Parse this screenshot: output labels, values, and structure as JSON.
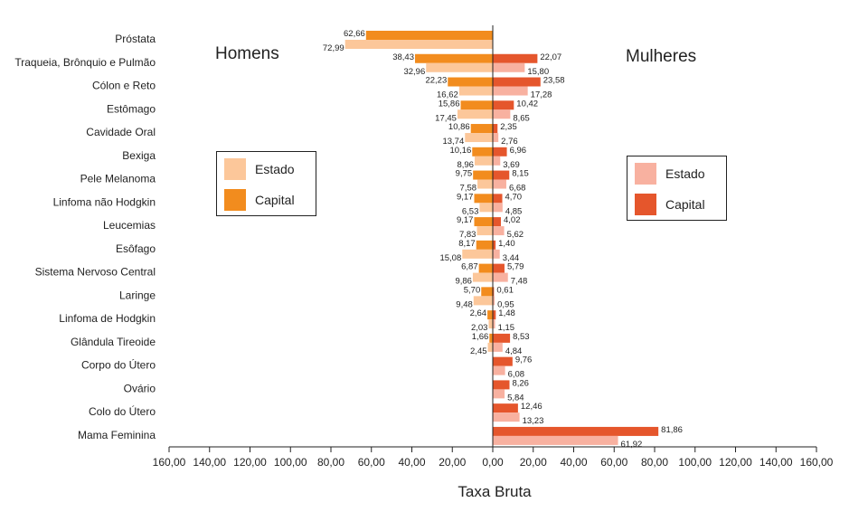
{
  "colors": {
    "men_capital": "#F28C1E",
    "men_estado": "#FCC79A",
    "women_capital": "#E5562C",
    "women_estado": "#F8B1A0",
    "axis": "#222222"
  },
  "labels": {
    "homens": "Homens",
    "mulheres": "Mulheres",
    "xlabel": "Taxa Bruta"
  },
  "legend_men": [
    {
      "label": "Estado",
      "color": "#FCC79A"
    },
    {
      "label": "Capital",
      "color": "#F28C1E"
    }
  ],
  "legend_women": [
    {
      "label": "Estado",
      "color": "#F8B1A0"
    },
    {
      "label": "Capital",
      "color": "#E5562C"
    }
  ],
  "chart_data": {
    "type": "bar",
    "orientation": "horizontal-butterfly",
    "xlabel": "Taxa Bruta",
    "xlim": [
      -160,
      160
    ],
    "xticks": [
      -160,
      -140,
      -120,
      -100,
      -80,
      -60,
      -40,
      -20,
      0,
      20,
      40,
      60,
      80,
      100,
      120,
      140,
      160
    ],
    "xtick_labels": [
      "160,00",
      "140,00",
      "120,00",
      "100,00",
      "80,00",
      "60,00",
      "40,00",
      "20,00",
      "0,00",
      "20,00",
      "40,00",
      "60,00",
      "80,00",
      "100,00",
      "120,00",
      "140,00",
      "160,00"
    ],
    "categories": [
      "Próstata",
      "Traqueia, Brônquio e Pulmão",
      "Cólon e Reto",
      "Estômago",
      "Cavidade Oral",
      "Bexiga",
      "Pele Melanoma",
      "Linfoma não Hodgkin",
      "Leucemias",
      "Esôfago",
      "Sistema Nervoso Central",
      "Laringe",
      "Linfoma de Hodgkin",
      "Glândula Tireoide",
      "Corpo do Útero",
      "Ovário",
      "Colo do Útero",
      "Mama Feminina"
    ],
    "series": [
      {
        "name": "Homens Capital",
        "side": "left",
        "values": [
          62.66,
          38.43,
          22.23,
          15.86,
          10.86,
          10.16,
          9.75,
          9.17,
          9.17,
          8.17,
          6.87,
          5.7,
          2.64,
          1.66,
          null,
          null,
          null,
          null
        ],
        "labels": [
          "62,66",
          "38,43",
          "22,23",
          "15,86",
          "10,86",
          "10,16",
          "9,75",
          "9,17",
          "9,17",
          "8,17",
          "6,87",
          "5,70",
          "2,64",
          "1,66",
          "",
          "",
          "",
          ""
        ]
      },
      {
        "name": "Homens Estado",
        "side": "left",
        "values": [
          72.99,
          32.96,
          16.62,
          17.45,
          13.74,
          8.96,
          7.58,
          6.53,
          7.83,
          15.08,
          9.86,
          9.48,
          2.03,
          2.45,
          null,
          null,
          null,
          null
        ],
        "labels": [
          "72,99",
          "32,96",
          "16,62",
          "17,45",
          "13,74",
          "8,96",
          "7,58",
          "6,53",
          "7,83",
          "15,08",
          "9,86",
          "9,48",
          "2,03",
          "2,45",
          "",
          "",
          "",
          ""
        ]
      },
      {
        "name": "Mulheres Capital",
        "side": "right",
        "values": [
          null,
          22.07,
          23.58,
          10.42,
          2.35,
          6.96,
          8.15,
          4.7,
          4.02,
          1.4,
          5.79,
          0.61,
          1.48,
          8.53,
          9.76,
          8.26,
          12.46,
          81.86
        ],
        "labels": [
          "",
          "22,07",
          "23,58",
          "10,42",
          "2,35",
          "6,96",
          "8,15",
          "4,70",
          "4,02",
          "1,40",
          "5,79",
          "0,61",
          "1,48",
          "8,53",
          "9,76",
          "8,26",
          "12,46",
          "81,86"
        ]
      },
      {
        "name": "Mulheres Estado",
        "side": "right",
        "values": [
          null,
          15.8,
          17.28,
          8.65,
          2.76,
          3.69,
          6.68,
          4.85,
          5.62,
          3.44,
          7.48,
          0.95,
          1.15,
          4.84,
          6.08,
          5.84,
          13.23,
          61.92
        ],
        "labels": [
          "",
          "15,80",
          "17,28",
          "8,65",
          "2,76",
          "3,69",
          "6,68",
          "4,85",
          "5,62",
          "3,44",
          "7,48",
          "0,95",
          "1,15",
          "4,84",
          "6,08",
          "5,84",
          "13,23",
          "61,92"
        ]
      }
    ],
    "legend": [
      "Estado",
      "Capital"
    ],
    "grid": false
  }
}
